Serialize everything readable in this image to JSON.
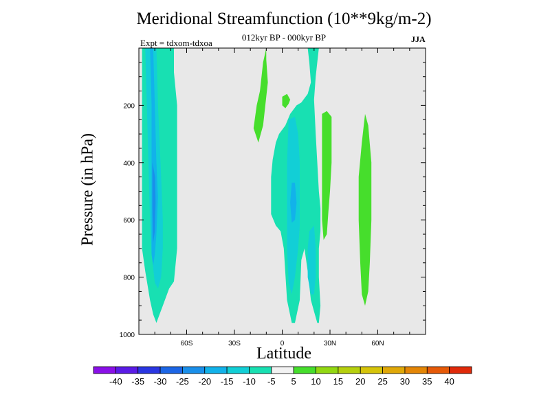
{
  "chart_data": {
    "type": "heatmap",
    "title": "Meridional Streamfunction (10**9kg/m-2)",
    "subtitle": "012kyr BP - 000kyr BP",
    "left_annotation": "Expt = tdxom-tdxoa",
    "right_annotation": "JJA",
    "xlabel": "Latitude",
    "ylabel": "Pressure (in hPa)",
    "xlim": [
      -90,
      90
    ],
    "ylim": [
      1000,
      0
    ],
    "x_ticks": [
      {
        "value": -60,
        "label": "60S"
      },
      {
        "value": -30,
        "label": "30S"
      },
      {
        "value": 0,
        "label": "0"
      },
      {
        "value": 30,
        "label": "30N"
      },
      {
        "value": 60,
        "label": "60N"
      }
    ],
    "y_ticks": [
      {
        "value": 200,
        "label": "200"
      },
      {
        "value": 400,
        "label": "400"
      },
      {
        "value": 600,
        "label": "600"
      },
      {
        "value": 800,
        "label": "800"
      },
      {
        "value": 1000,
        "label": "1000"
      }
    ],
    "background_color": "#e8e8e8",
    "colorbar": {
      "levels": [
        "-40",
        "-35",
        "-30",
        "-25",
        "-20",
        "-15",
        "-10",
        "-5",
        "5",
        "10",
        "15",
        "20",
        "25",
        "30",
        "35",
        "40"
      ],
      "colors": [
        "#8a10e8",
        "#5a1be6",
        "#2a36e2",
        "#1c66e6",
        "#1a8fea",
        "#12b2ea",
        "#12cfd6",
        "#18e0b2",
        "#f2f2f2",
        "#46de2c",
        "#92d812",
        "#b6d00e",
        "#d6c40a",
        "#e0a808",
        "#e48606",
        "#e65a08",
        "#e02a0a"
      ]
    },
    "regions": [
      {
        "name": "southern-cell-outer",
        "level": "-10",
        "color": "#18e0b2",
        "points": [
          [
            -88,
            0
          ],
          [
            -68,
            0
          ],
          [
            -68,
            85
          ],
          [
            -66,
            200
          ],
          [
            -66,
            500
          ],
          [
            -66,
            700
          ],
          [
            -68,
            815
          ],
          [
            -71,
            840
          ],
          [
            -75,
            900
          ],
          [
            -77,
            930
          ],
          [
            -79,
            960
          ],
          [
            -81,
            930
          ],
          [
            -83,
            880
          ],
          [
            -86,
            780
          ],
          [
            -88,
            700
          ]
        ]
      },
      {
        "name": "southern-cell-mid",
        "level": "-15",
        "color": "#12cfd6",
        "points": [
          [
            -86,
            0
          ],
          [
            -79,
            0
          ],
          [
            -78,
            200
          ],
          [
            -76,
            450
          ],
          [
            -75,
            600
          ],
          [
            -75,
            700
          ],
          [
            -76,
            800
          ],
          [
            -78,
            840
          ],
          [
            -80,
            820
          ],
          [
            -82,
            720
          ],
          [
            -83,
            600
          ],
          [
            -84,
            400
          ],
          [
            -85,
            200
          ]
        ]
      },
      {
        "name": "southern-cell-core",
        "level": "-20",
        "color": "#12b2ea",
        "points": [
          [
            -83,
            0
          ],
          [
            -81,
            0
          ],
          [
            -80,
            200
          ],
          [
            -79,
            400
          ],
          [
            -78,
            520
          ],
          [
            -79,
            650
          ],
          [
            -80,
            720
          ],
          [
            -81,
            760
          ],
          [
            -82,
            720
          ],
          [
            -82,
            600
          ],
          [
            -82,
            400
          ],
          [
            -82,
            200
          ]
        ]
      },
      {
        "name": "southern-cell-inner",
        "level": "-25",
        "color": "#1a8fea",
        "points": [
          [
            -81.5,
            400
          ],
          [
            -79.8,
            450
          ],
          [
            -79.5,
            540
          ],
          [
            -80,
            640
          ],
          [
            -81,
            680
          ],
          [
            -81.5,
            560
          ]
        ]
      },
      {
        "name": "tropical-cell-outer",
        "level": "-10",
        "color": "#18e0b2",
        "points": [
          [
            16,
            0
          ],
          [
            23,
            0
          ],
          [
            22,
            50
          ],
          [
            21,
            100
          ],
          [
            20,
            180
          ],
          [
            21,
            300
          ],
          [
            22,
            400
          ],
          [
            23,
            500
          ],
          [
            24,
            560
          ],
          [
            24,
            640
          ],
          [
            23,
            700
          ],
          [
            23,
            800
          ],
          [
            24,
            900
          ],
          [
            23,
            960
          ],
          [
            22,
            960
          ],
          [
            20,
            920
          ],
          [
            18,
            880
          ],
          [
            16,
            780
          ],
          [
            14,
            700
          ],
          [
            12,
            740
          ],
          [
            11,
            880
          ],
          [
            8,
            960
          ],
          [
            6,
            960
          ],
          [
            3,
            880
          ],
          [
            1,
            700
          ],
          [
            -1,
            640
          ],
          [
            -4,
            620
          ],
          [
            -7,
            580
          ],
          [
            -7,
            450
          ],
          [
            -6,
            390
          ],
          [
            -4,
            330
          ],
          [
            -2,
            300
          ],
          [
            2,
            270
          ],
          [
            5,
            230
          ],
          [
            9,
            200
          ],
          [
            12,
            190
          ],
          [
            16,
            160
          ],
          [
            18,
            120
          ],
          [
            17,
            50
          ]
        ]
      },
      {
        "name": "tropical-cell-mid",
        "level": "-15",
        "color": "#12cfd6",
        "points": [
          [
            4,
            250
          ],
          [
            8,
            240
          ],
          [
            10,
            300
          ],
          [
            11,
            400
          ],
          [
            11,
            500
          ],
          [
            11,
            620
          ],
          [
            10,
            700
          ],
          [
            8,
            800
          ],
          [
            6,
            860
          ],
          [
            4,
            820
          ],
          [
            3,
            700
          ],
          [
            3,
            500
          ],
          [
            3,
            400
          ]
        ]
      },
      {
        "name": "tropical-cell-core",
        "level": "-20",
        "color": "#12b2ea",
        "points": [
          [
            6,
            470
          ],
          [
            8,
            470
          ],
          [
            9,
            540
          ],
          [
            8,
            600
          ],
          [
            6,
            610
          ],
          [
            5,
            540
          ]
        ]
      },
      {
        "name": "tropical-cell-lower",
        "level": "-15",
        "color": "#12cfd6",
        "points": [
          [
            17,
            640
          ],
          [
            20,
            620
          ],
          [
            21,
            700
          ],
          [
            21,
            800
          ],
          [
            20,
            860
          ],
          [
            18,
            860
          ],
          [
            16,
            800
          ],
          [
            16,
            700
          ]
        ]
      },
      {
        "name": "nh-mid-positive",
        "level": "5",
        "color": "#46de2c",
        "points": [
          [
            -10,
            0
          ],
          [
            -12,
            50
          ],
          [
            -14,
            150
          ],
          [
            -16,
            200
          ],
          [
            -18,
            280
          ],
          [
            -15,
            330
          ],
          [
            -12,
            270
          ],
          [
            -9,
            120
          ],
          [
            -10,
            40
          ]
        ]
      },
      {
        "name": "nh-small-positive",
        "level": "5",
        "color": "#46de2c",
        "points": [
          [
            0,
            170
          ],
          [
            3,
            160
          ],
          [
            5,
            180
          ],
          [
            4,
            195
          ],
          [
            2,
            210
          ],
          [
            0,
            200
          ]
        ]
      },
      {
        "name": "nh-30n-positive",
        "level": "5",
        "color": "#46de2c",
        "points": [
          [
            25,
            230
          ],
          [
            28,
            220
          ],
          [
            31,
            240
          ],
          [
            31,
            400
          ],
          [
            30,
            500
          ],
          [
            29,
            570
          ],
          [
            28,
            650
          ],
          [
            26,
            670
          ],
          [
            25,
            600
          ],
          [
            25,
            400
          ]
        ]
      },
      {
        "name": "nh-50n-positive",
        "level": "5",
        "color": "#46de2c",
        "points": [
          [
            52,
            230
          ],
          [
            54,
            270
          ],
          [
            56,
            400
          ],
          [
            56,
            600
          ],
          [
            55,
            750
          ],
          [
            54,
            850
          ],
          [
            52,
            900
          ],
          [
            50,
            860
          ],
          [
            49,
            750
          ],
          [
            48,
            600
          ],
          [
            48,
            450
          ],
          [
            50,
            330
          ]
        ]
      }
    ]
  }
}
